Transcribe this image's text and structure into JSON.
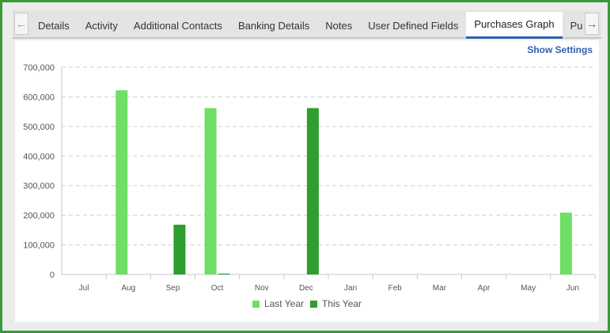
{
  "tabs": [
    {
      "label": "Details",
      "active": false
    },
    {
      "label": "Activity",
      "active": false
    },
    {
      "label": "Additional Contacts",
      "active": false
    },
    {
      "label": "Banking Details",
      "active": false
    },
    {
      "label": "Notes",
      "active": false
    },
    {
      "label": "User Defined Fields",
      "active": false
    },
    {
      "label": "Purchases Graph",
      "active": true
    },
    {
      "label": "Purchase C",
      "active": false
    }
  ],
  "icons": {
    "scroll_left": "arrow-left-icon",
    "scroll_right": "arrow-right-icon"
  },
  "show_settings_label": "Show Settings",
  "colors": {
    "frame": "#3a9a3a",
    "last_year": "#6edf64",
    "this_year": "#2e9e2e",
    "active_tab": "#2f5fb3"
  },
  "chart_data": {
    "type": "bar",
    "categories": [
      "Jul",
      "Aug",
      "Sep",
      "Oct",
      "Nov",
      "Dec",
      "Jan",
      "Feb",
      "Mar",
      "Apr",
      "May",
      "Jun"
    ],
    "series": [
      {
        "name": "Last Year",
        "values": [
          0,
          622000,
          0,
          562000,
          0,
          0,
          0,
          0,
          0,
          0,
          0,
          209000
        ]
      },
      {
        "name": "This Year",
        "values": [
          0,
          0,
          168000,
          3000,
          0,
          562000,
          0,
          0,
          0,
          0,
          0,
          0
        ]
      }
    ],
    "yticks": [
      "0",
      "100,000",
      "200,000",
      "300,000",
      "400,000",
      "500,000",
      "600,000",
      "700,000"
    ],
    "ylim": [
      0,
      700000
    ],
    "grid": true,
    "legend_position": "bottom"
  }
}
